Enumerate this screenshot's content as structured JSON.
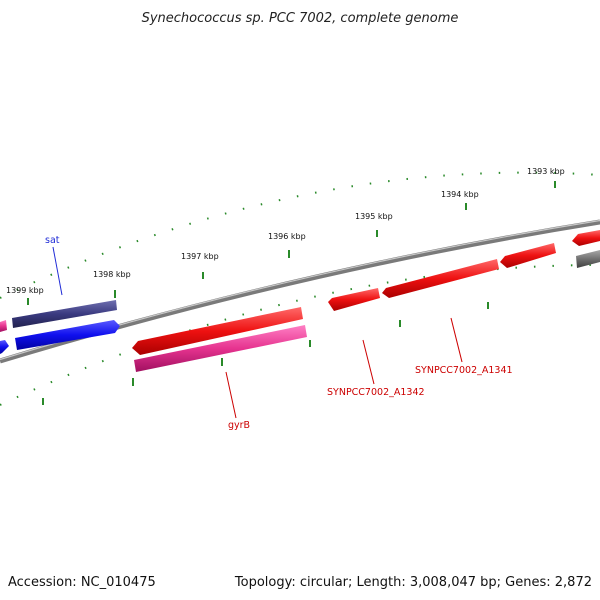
{
  "title": "Synechococcus sp. PCC 7002, complete genome",
  "footer": {
    "accession": "Accession: NC_010475",
    "summary": "Topology: circular; Length: 3,008,047 bp; Genes: 2,872"
  },
  "ticks": [
    "1393 kbp",
    "1394 kbp",
    "1395 kbp",
    "1396 kbp",
    "1397 kbp",
    "1398 kbp",
    "1399 kbp"
  ],
  "genes": [
    {
      "name": "sat",
      "color": "#1f2bd6"
    },
    {
      "name": "gyrB",
      "color": "#cc0000"
    },
    {
      "name": "SYNPCC7002_A1342",
      "color": "#cc0000"
    },
    {
      "name": "SYNPCC7002_A1341",
      "color": "#cc0000"
    }
  ],
  "colors": {
    "backbone": "#8a8a8a",
    "scale": "#2a8a2a",
    "gene_red": "#e41a1c",
    "gene_pink": "#e6338f",
    "gene_blue": "#1a1ae6",
    "gene_navy": "#3a3a80",
    "gene_gray": "#707070"
  }
}
